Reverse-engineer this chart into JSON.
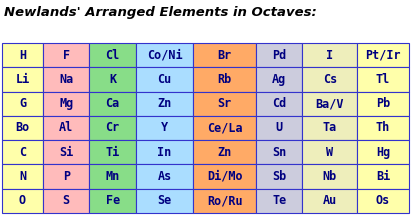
{
  "title": "Newlands' Arranged Elements in Octaves:",
  "title_color": "#000000",
  "title_fontsize": 9.5,
  "background_color": "#ffffff",
  "border_color": "#3333cc",
  "text_color": "#000080",
  "cell_text_fontsize": 8.5,
  "rows": [
    [
      "H",
      "F",
      "Cl",
      "Co/Ni",
      "Br",
      "Pd",
      "I",
      "Pt/Ir"
    ],
    [
      "Li",
      "Na",
      "K",
      "Cu",
      "Rb",
      "Ag",
      "Cs",
      "Tl"
    ],
    [
      "G",
      "Mg",
      "Ca",
      "Zn",
      "Sr",
      "Cd",
      "Ba/V",
      "Pb"
    ],
    [
      "Bo",
      "Al",
      "Cr",
      "Y",
      "Ce/La",
      "U",
      "Ta",
      "Th"
    ],
    [
      "C",
      "Si",
      "Ti",
      "In",
      "Zn",
      "Sn",
      "W",
      "Hg"
    ],
    [
      "N",
      "P",
      "Mn",
      "As",
      "Di/Mo",
      "Sb",
      "Nb",
      "Bi"
    ],
    [
      "O",
      "S",
      "Fe",
      "Se",
      "Ro/Ru",
      "Te",
      "Au",
      "Os"
    ]
  ],
  "col_colors": [
    "#ffffaa",
    "#ffbbbb",
    "#88dd88",
    "#aaddff",
    "#ffaa66",
    "#ccccdd",
    "#eeeebb",
    "#ffffaa"
  ],
  "ncols": 8,
  "nrows": 7,
  "col_widths": [
    0.75,
    0.85,
    0.85,
    1.05,
    1.15,
    0.85,
    1.0,
    0.95
  ]
}
